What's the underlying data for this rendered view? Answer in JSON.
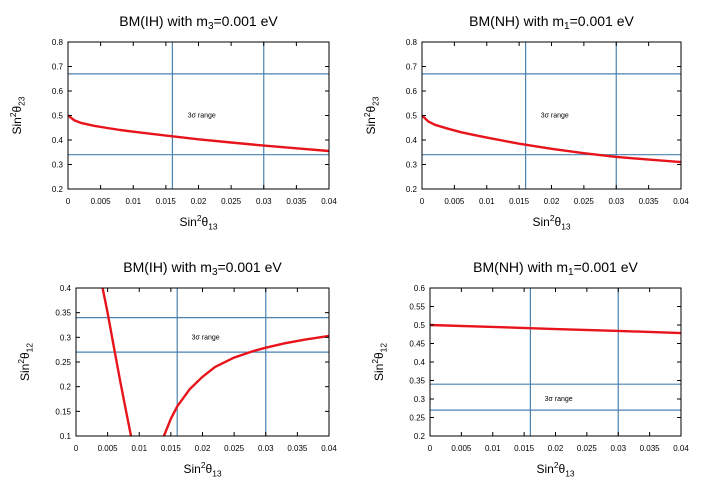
{
  "colors": {
    "curve": "#e8141b",
    "ref_line": "#4a82b0",
    "frame": "#000000"
  },
  "chart_data": [
    {
      "type": "line",
      "title": "BM(IH) with m3=0.001 eV",
      "title_parts": {
        "pre": "BM(IH) with m",
        "sub": "3",
        "post": "=0.001 eV"
      },
      "xlabel": {
        "base": "Sin",
        "sup": "2",
        "sym": "θ",
        "sub": "13"
      },
      "ylabel": {
        "base": "Sin",
        "sup": "2",
        "sym": "θ",
        "sub": "23"
      },
      "xlim": [
        0,
        0.04
      ],
      "ylim": [
        0.2,
        0.8
      ],
      "xticks": [
        "0",
        "0.005",
        "0.01",
        "0.015",
        "0.02",
        "0.025",
        "0.03",
        "0.035",
        "0.04"
      ],
      "yticks": [
        "0.2",
        "0.3",
        "0.4",
        "0.5",
        "0.6",
        "0.7",
        "0.8"
      ],
      "hlines": [
        0.34,
        0.67
      ],
      "vlines": [
        0.016,
        0.03
      ],
      "annotation": {
        "text": "3σ range",
        "x": 0.0205,
        "y": 0.5
      },
      "series": [
        {
          "segments": [
            {
              "x": [
                0,
                0.001,
                0.002,
                0.004,
                0.006,
                0.008,
                0.01,
                0.015,
                0.02,
                0.025,
                0.03,
                0.035,
                0.04
              ],
              "y": [
                0.5,
                0.48,
                0.47,
                0.458,
                0.449,
                0.441,
                0.434,
                0.418,
                0.403,
                0.39,
                0.377,
                0.366,
                0.355
              ]
            }
          ]
        }
      ]
    },
    {
      "type": "line",
      "title": "BM(NH) with m1=0.001 eV",
      "title_parts": {
        "pre": "BM(NH) with m",
        "sub": "1",
        "post": "=0.001 eV"
      },
      "xlabel": {
        "base": "Sin",
        "sup": "2",
        "sym": "θ",
        "sub": "13"
      },
      "ylabel": {
        "base": "Sin",
        "sup": "2",
        "sym": "θ",
        "sub": "23"
      },
      "xlim": [
        0,
        0.04
      ],
      "ylim": [
        0.2,
        0.8
      ],
      "xticks": [
        "0",
        "0.005",
        "0.01",
        "0.015",
        "0.02",
        "0.025",
        "0.03",
        "0.035",
        "0.04"
      ],
      "yticks": [
        "0.2",
        "0.3",
        "0.4",
        "0.5",
        "0.6",
        "0.7",
        "0.8"
      ],
      "hlines": [
        0.34,
        0.67
      ],
      "vlines": [
        0.016,
        0.03
      ],
      "annotation": {
        "text": "3σ range",
        "x": 0.0205,
        "y": 0.5
      },
      "series": [
        {
          "segments": [
            {
              "x": [
                0,
                0.001,
                0.002,
                0.004,
                0.006,
                0.008,
                0.01,
                0.015,
                0.02,
                0.025,
                0.03,
                0.035,
                0.04
              ],
              "y": [
                0.5,
                0.475,
                0.462,
                0.446,
                0.432,
                0.421,
                0.41,
                0.385,
                0.364,
                0.346,
                0.331,
                0.32,
                0.31
              ]
            }
          ]
        }
      ]
    },
    {
      "type": "line",
      "title": "BM(IH) with m3=0.001 eV",
      "title_parts": {
        "pre": "BM(IH) with m",
        "sub": "3",
        "post": "=0.001 eV"
      },
      "xlabel": {
        "base": "Sin",
        "sup": "2",
        "sym": "θ",
        "sub": "13"
      },
      "ylabel": {
        "base": "Sin",
        "sup": "2",
        "sym": "θ",
        "sub": "12"
      },
      "xlim": [
        0,
        0.04
      ],
      "ylim": [
        0.1,
        0.4
      ],
      "xticks": [
        "0",
        "0.005",
        "0.01",
        "0.015",
        "0.02",
        "0.025",
        "0.03",
        "0.035",
        "0.04"
      ],
      "yticks": [
        "0.1",
        "0.15",
        "0.2",
        "0.25",
        "0.3",
        "0.35",
        "0.4"
      ],
      "hlines": [
        0.27,
        0.34
      ],
      "vlines": [
        0.016,
        0.03
      ],
      "annotation": {
        "text": "3σ range",
        "x": 0.0205,
        "y": 0.3
      },
      "series": [
        {
          "segments": [
            {
              "x": [
                0.0042,
                0.005,
                0.006,
                0.007,
                0.008,
                0.0087
              ],
              "y": [
                0.4,
                0.35,
                0.28,
                0.21,
                0.145,
                0.1
              ]
            },
            {
              "x": [
                0.0139,
                0.015,
                0.016,
                0.018,
                0.02,
                0.022,
                0.025,
                0.028,
                0.03,
                0.033,
                0.036,
                0.04
              ],
              "y": [
                0.1,
                0.135,
                0.16,
                0.195,
                0.22,
                0.24,
                0.259,
                0.272,
                0.279,
                0.288,
                0.295,
                0.303
              ]
            }
          ]
        }
      ]
    },
    {
      "type": "line",
      "title": "BM(NH) with m1=0.001 eV",
      "title_parts": {
        "pre": "BM(NH) with m",
        "sub": "1",
        "post": "=0.001 eV"
      },
      "xlabel": {
        "base": "Sin",
        "sup": "2",
        "sym": "θ",
        "sub": "13"
      },
      "ylabel": {
        "base": "Sin",
        "sup": "2",
        "sym": "θ",
        "sub": "12"
      },
      "xlim": [
        0,
        0.04
      ],
      "ylim": [
        0.2,
        0.6
      ],
      "xticks": [
        "0",
        "0.005",
        "0.01",
        "0.015",
        "0.02",
        "0.025",
        "0.03",
        "0.035",
        "0.04"
      ],
      "yticks": [
        "0.2",
        "0.25",
        "0.3",
        "0.35",
        "0.4",
        "0.45",
        "0.5",
        "0.55",
        "0.6"
      ],
      "hlines": [
        0.27,
        0.34
      ],
      "vlines": [
        0.016,
        0.03
      ],
      "annotation": {
        "text": "3σ range",
        "x": 0.0205,
        "y": 0.3
      },
      "series": [
        {
          "segments": [
            {
              "x": [
                0,
                0.01,
                0.02,
                0.03,
                0.04
              ],
              "y": [
                0.5,
                0.495,
                0.489,
                0.484,
                0.478
              ]
            }
          ]
        }
      ]
    }
  ]
}
